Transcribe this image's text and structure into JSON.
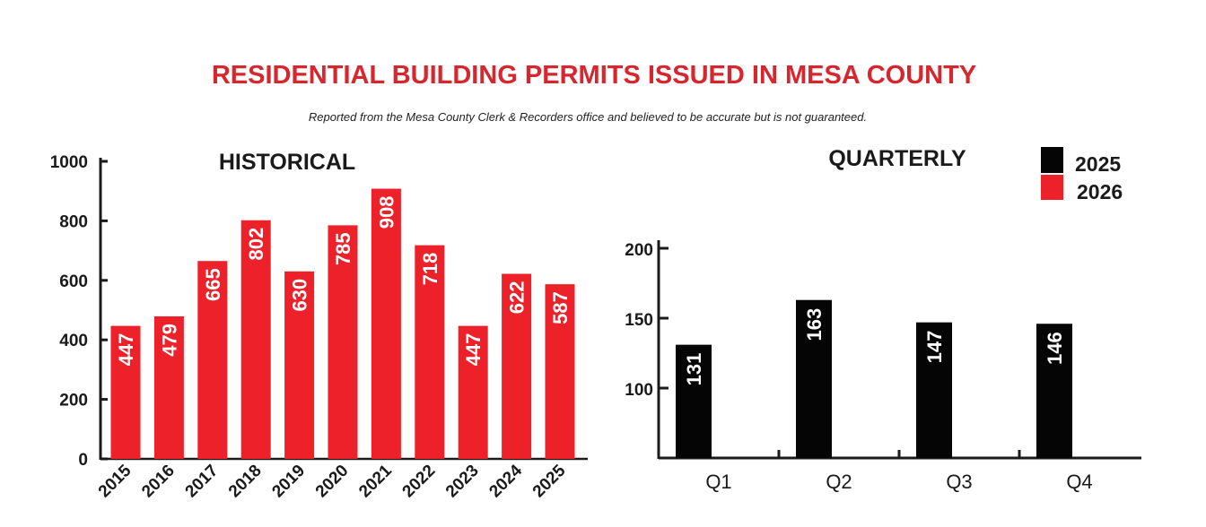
{
  "title": "RESIDENTIAL BUILDING PERMITS ISSUED IN MESA COUNTY",
  "subtitle": "Reported from the Mesa County Clerk & Recorders office and believed to be accurate but is not guaranteed.",
  "chart_data": [
    {
      "type": "bar",
      "title": "HISTORICAL",
      "categories": [
        "2015",
        "2016",
        "2017",
        "2018",
        "2019",
        "2020",
        "2021",
        "2022",
        "2023",
        "2024",
        "2025"
      ],
      "values": [
        447,
        479,
        665,
        802,
        630,
        785,
        908,
        718,
        447,
        622,
        587
      ],
      "data_labels": [
        "447",
        "479",
        "665",
        "802",
        "630",
        "785",
        "908",
        "718",
        "447",
        "622",
        "587"
      ],
      "ylim": [
        0,
        1000
      ],
      "yticks": [
        "0",
        "200",
        "400",
        "600",
        "800",
        "1000"
      ],
      "color": "#ed2129",
      "grid": false
    },
    {
      "type": "bar",
      "title": "QUARTERLY",
      "categories": [
        "Q1",
        "Q2",
        "Q3",
        "Q4"
      ],
      "series": [
        {
          "name": "2025",
          "values": [
            131,
            163,
            147,
            146
          ],
          "data_labels": [
            "131",
            "163",
            "147",
            "146"
          ],
          "color": "#050505"
        },
        {
          "name": "2026",
          "values": [
            null,
            null,
            null,
            null
          ],
          "color": "#ed2129"
        }
      ],
      "ylim": [
        50,
        200
      ],
      "yticks": [
        "100",
        "150",
        "200"
      ],
      "legend": "top-right",
      "grid": false
    }
  ]
}
